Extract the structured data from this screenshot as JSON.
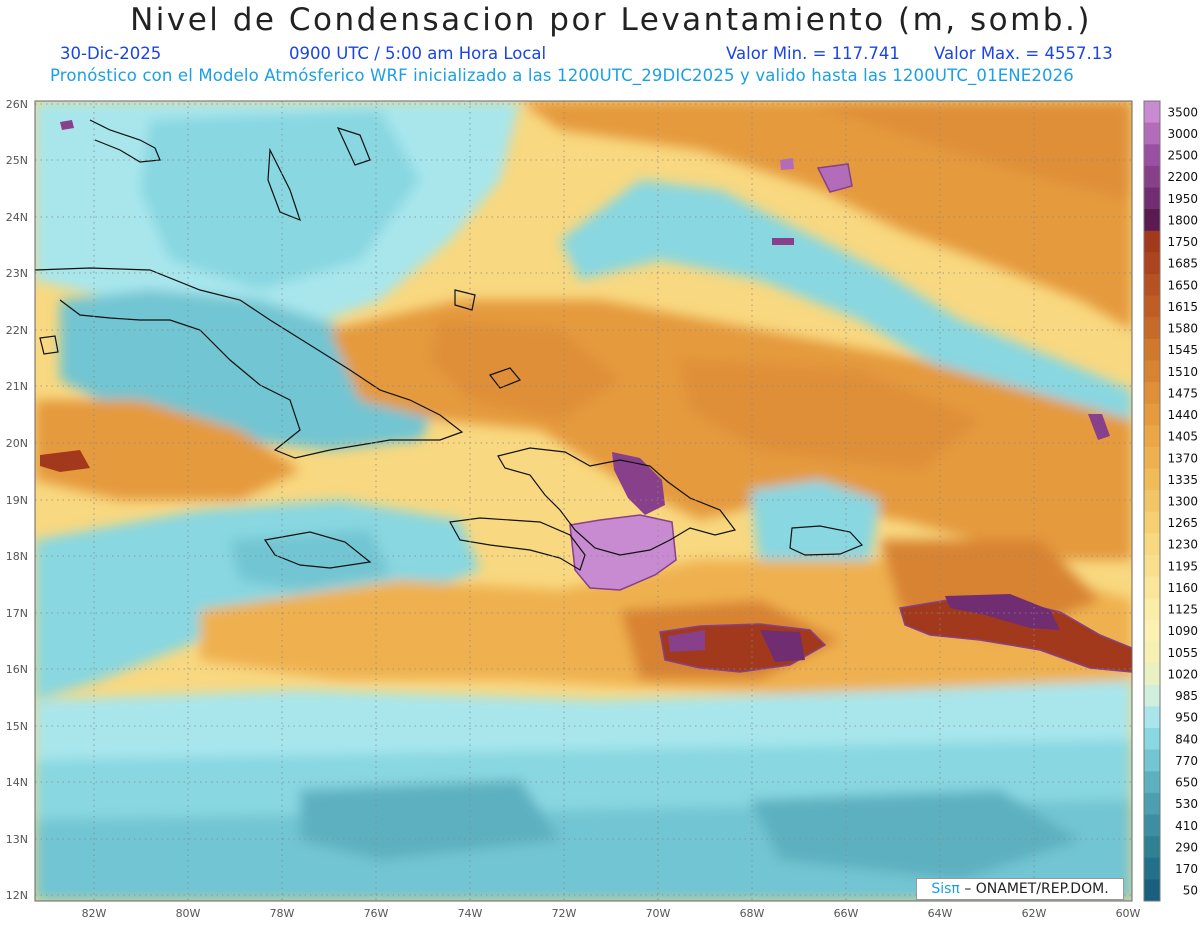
{
  "header": {
    "title": "Nivel de Condensacion por Levantamiento (m, somb.)",
    "date": "30-Dic-2025",
    "time": "0900 UTC / 5:00 am Hora Local",
    "min_label": "Valor Min. = 117.741",
    "max_label": "Valor Max. = 4557.13",
    "forecast_info": "Pronóstico con el Modelo Atmósferico WRF inicializado a las 1200UTC_29DIC2025 y valido hasta las  1200UTC_01ENE2026"
  },
  "axes": {
    "lon_labels": [
      "82W",
      "80W",
      "78W",
      "76W",
      "74W",
      "72W",
      "70W",
      "68W",
      "66W",
      "64W",
      "62W",
      "60W"
    ],
    "lat_labels": [
      "26N",
      "25N",
      "24N",
      "23N",
      "22N",
      "21N",
      "20N",
      "19N",
      "18N",
      "17N",
      "16N",
      "15N",
      "14N",
      "13N",
      "12N"
    ]
  },
  "colorbar": {
    "labels": [
      "3500",
      "3000",
      "2500",
      "2200",
      "1950",
      "1800",
      "1750",
      "1685",
      "1650",
      "1615",
      "1580",
      "1545",
      "1510",
      "1475",
      "1440",
      "1405",
      "1370",
      "1335",
      "1300",
      "1265",
      "1230",
      "1195",
      "1160",
      "1125",
      "1090",
      "1055",
      "1020",
      "985",
      "950",
      "840",
      "770",
      "650",
      "530",
      "410",
      "290",
      "170",
      "50"
    ],
    "colors": [
      "#c88ad0",
      "#b26cba",
      "#9b4fa0",
      "#874089",
      "#702d72",
      "#5a1b50",
      "#a3391c",
      "#ad441f",
      "#b65122",
      "#bf5d25",
      "#c76a28",
      "#d0782c",
      "#d88331",
      "#df8f37",
      "#e59a3e",
      "#eba646",
      "#efb14f",
      "#f2bb5a",
      "#f4c566",
      "#f6cf73",
      "#f8d880",
      "#f9df8d",
      "#fae69b",
      "#fbeca8",
      "#fcf0b2",
      "#f7f0b5",
      "#eaf0c0",
      "#d0eedc",
      "#a8e6ec",
      "#88d7e1",
      "#72c5d2",
      "#5db0c0",
      "#4c9eb0",
      "#3d8ea2",
      "#2f8093",
      "#23708a",
      "#1b5f7e"
    ]
  },
  "credit": {
    "sis": "Sisπ",
    "org": "– ONAMET/REP.DOM."
  }
}
